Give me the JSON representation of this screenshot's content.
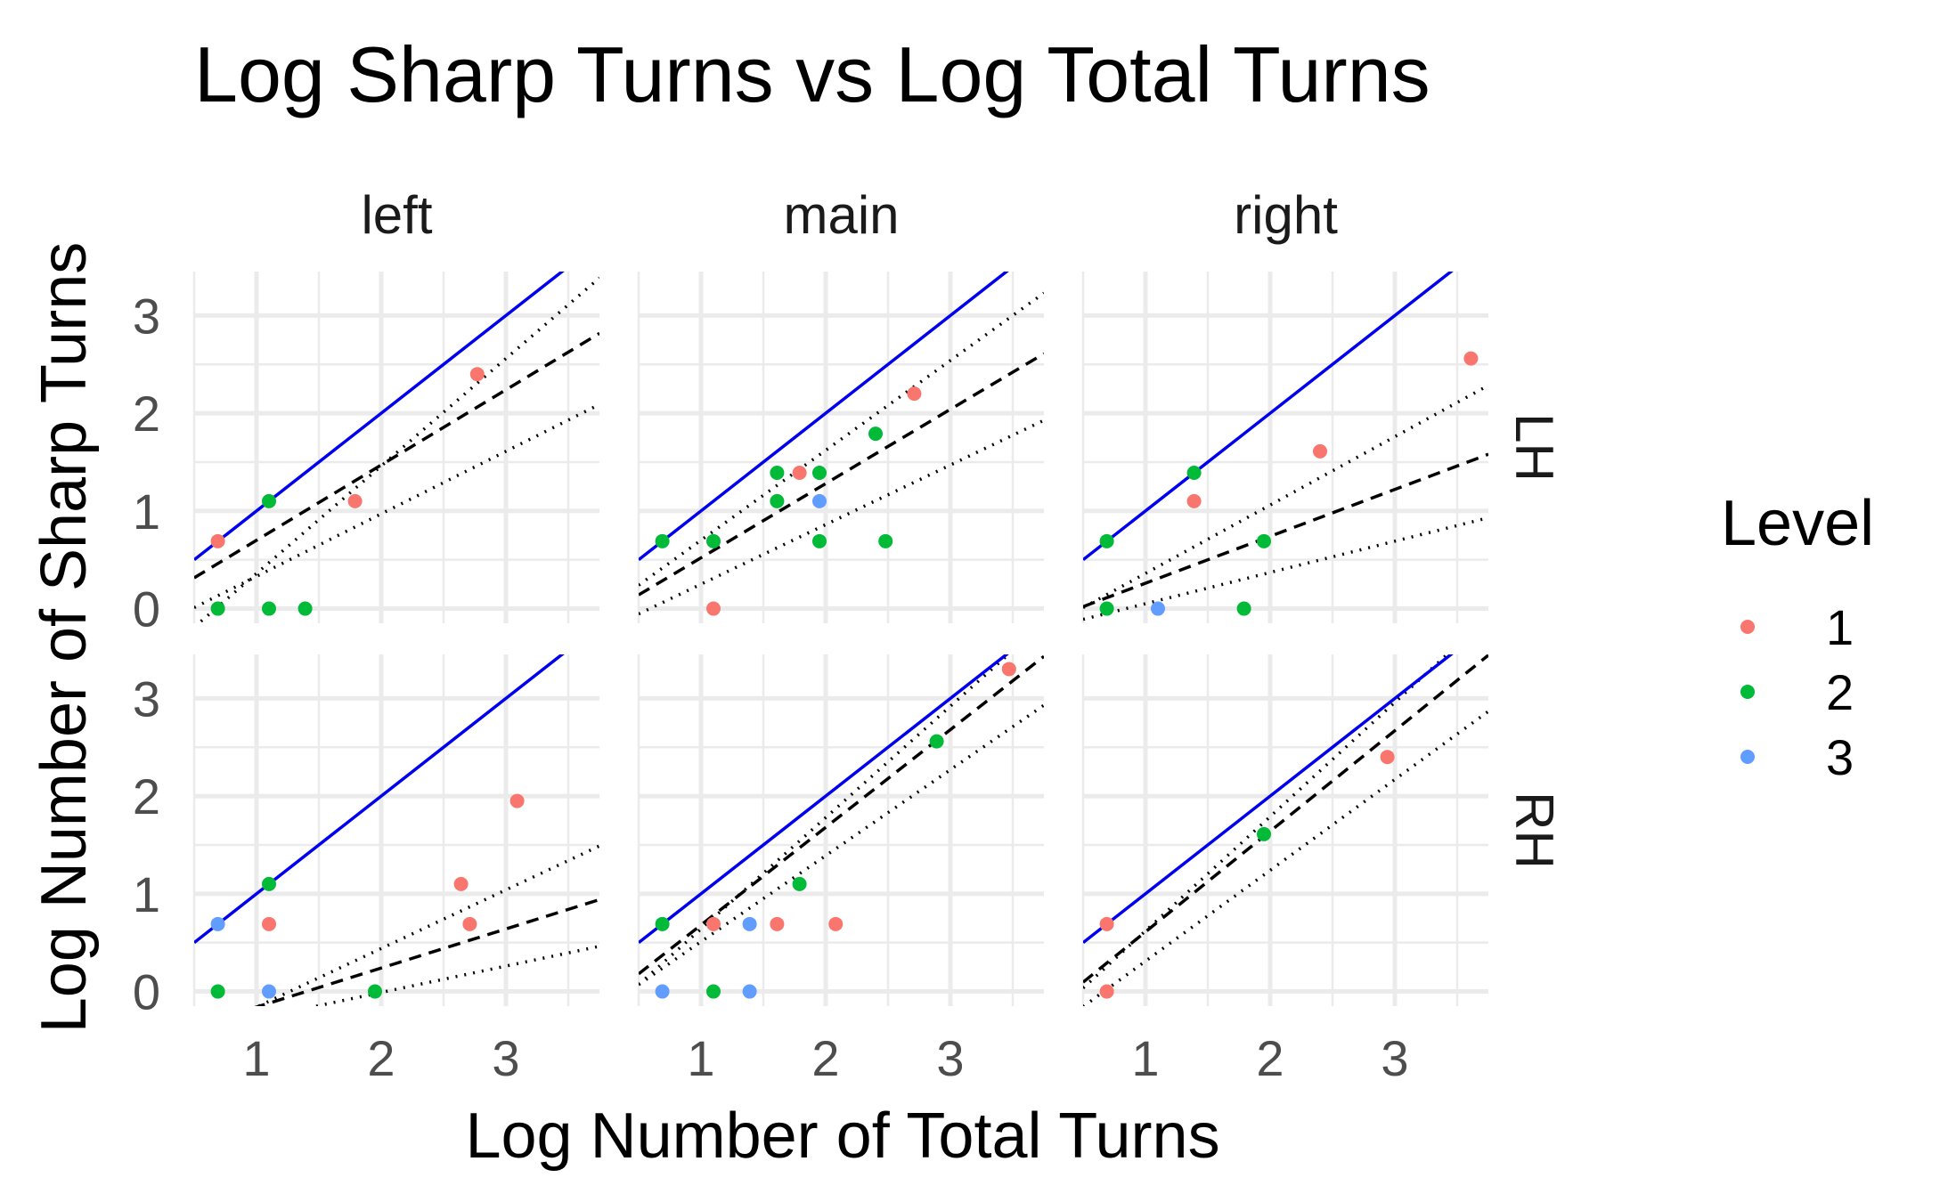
{
  "chart_data": {
    "type": "scatter",
    "title": "Log Sharp Turns vs Log Total Turns",
    "xlabel": "Log Number of Total Turns",
    "ylabel": "Log Number of Sharp Turns",
    "xlim": [
      0.5,
      3.75
    ],
    "ylim": [
      -0.15,
      3.45
    ],
    "x_ticks": [
      1,
      2,
      3
    ],
    "y_ticks": [
      0,
      1,
      2,
      3
    ],
    "grid": true,
    "facet_cols": [
      "left",
      "main",
      "right"
    ],
    "facet_rows": [
      "LH",
      "RH"
    ],
    "legend": {
      "title": "Level",
      "position": "right",
      "entries": [
        {
          "label": "1",
          "color": "#F8766D"
        },
        {
          "label": "2",
          "color": "#00BA38"
        },
        {
          "label": "3",
          "color": "#619CFF"
        }
      ]
    },
    "line_styles": {
      "reference": {
        "color": "#0000ee",
        "dash": "solid",
        "description": "y = x"
      },
      "fit": {
        "color": "#000000",
        "dash": "dashed"
      },
      "bounds": {
        "color": "#000000",
        "dash": "dotted"
      }
    },
    "panels": [
      {
        "col": "left",
        "row": "LH",
        "points": [
          {
            "x": 0.69,
            "y": 0.69,
            "level": 1
          },
          {
            "x": 1.79,
            "y": 1.1,
            "level": 1
          },
          {
            "x": 2.77,
            "y": 2.4,
            "level": 1
          },
          {
            "x": 0.69,
            "y": 0.0,
            "level": 2
          },
          {
            "x": 1.1,
            "y": 1.1,
            "level": 2
          },
          {
            "x": 1.1,
            "y": 0.0,
            "level": 2
          },
          {
            "x": 1.39,
            "y": 0.0,
            "level": 2
          }
        ],
        "fit": {
          "slope": 0.77,
          "intercept": -0.07
        },
        "bounds": [
          {
            "slope": 1.1,
            "intercept": -0.74
          },
          {
            "slope": 0.64,
            "intercept": -0.31
          }
        ]
      },
      {
        "col": "main",
        "row": "LH",
        "points": [
          {
            "x": 1.1,
            "y": 0.0,
            "level": 1
          },
          {
            "x": 1.79,
            "y": 1.39,
            "level": 1
          },
          {
            "x": 2.71,
            "y": 2.2,
            "level": 1
          },
          {
            "x": 0.69,
            "y": 0.69,
            "level": 2
          },
          {
            "x": 1.1,
            "y": 0.69,
            "level": 2
          },
          {
            "x": 1.61,
            "y": 1.39,
            "level": 2
          },
          {
            "x": 1.61,
            "y": 1.1,
            "level": 2
          },
          {
            "x": 1.95,
            "y": 1.39,
            "level": 2
          },
          {
            "x": 1.95,
            "y": 0.69,
            "level": 2
          },
          {
            "x": 2.4,
            "y": 1.79,
            "level": 2
          },
          {
            "x": 2.48,
            "y": 0.69,
            "level": 2
          },
          {
            "x": 1.95,
            "y": 1.1,
            "level": 3
          }
        ],
        "fit": {
          "slope": 0.76,
          "intercept": -0.24
        },
        "bounds": [
          {
            "slope": 0.92,
            "intercept": -0.22
          },
          {
            "slope": 0.61,
            "intercept": -0.36
          }
        ]
      },
      {
        "col": "right",
        "row": "LH",
        "points": [
          {
            "x": 1.39,
            "y": 1.1,
            "level": 1
          },
          {
            "x": 2.4,
            "y": 1.61,
            "level": 1
          },
          {
            "x": 3.61,
            "y": 2.56,
            "level": 1
          },
          {
            "x": 0.69,
            "y": 0.69,
            "level": 2
          },
          {
            "x": 0.69,
            "y": 0.0,
            "level": 2
          },
          {
            "x": 1.39,
            "y": 1.39,
            "level": 2
          },
          {
            "x": 1.95,
            "y": 0.69,
            "level": 2
          },
          {
            "x": 1.79,
            "y": 0.0,
            "level": 2
          },
          {
            "x": 1.1,
            "y": 0.0,
            "level": 3
          }
        ],
        "fit": {
          "slope": 0.48,
          "intercept": -0.22
        },
        "bounds": [
          {
            "slope": 0.7,
            "intercept": -0.34
          },
          {
            "slope": 0.32,
            "intercept": -0.27
          }
        ]
      },
      {
        "col": "left",
        "row": "RH",
        "points": [
          {
            "x": 1.1,
            "y": 0.69,
            "level": 1
          },
          {
            "x": 2.64,
            "y": 1.1,
            "level": 1
          },
          {
            "x": 2.71,
            "y": 0.69,
            "level": 1
          },
          {
            "x": 3.09,
            "y": 1.95,
            "level": 1
          },
          {
            "x": 0.69,
            "y": 0.0,
            "level": 2
          },
          {
            "x": 1.1,
            "y": 1.1,
            "level": 2
          },
          {
            "x": 1.95,
            "y": 0.0,
            "level": 2
          },
          {
            "x": 0.69,
            "y": 0.69,
            "level": 3
          },
          {
            "x": 1.1,
            "y": 0.0,
            "level": 3
          }
        ],
        "fit": {
          "slope": 0.4,
          "intercept": -0.56
        },
        "bounds": [
          {
            "slope": 0.6,
            "intercept": -0.76
          },
          {
            "slope": 0.27,
            "intercept": -0.55
          }
        ]
      },
      {
        "col": "main",
        "row": "RH",
        "points": [
          {
            "x": 1.1,
            "y": 0.69,
            "level": 1
          },
          {
            "x": 1.61,
            "y": 0.69,
            "level": 1
          },
          {
            "x": 2.08,
            "y": 0.69,
            "level": 1
          },
          {
            "x": 3.47,
            "y": 3.3,
            "level": 1
          },
          {
            "x": 0.69,
            "y": 0.69,
            "level": 2
          },
          {
            "x": 1.1,
            "y": 0.0,
            "level": 2
          },
          {
            "x": 1.79,
            "y": 1.1,
            "level": 2
          },
          {
            "x": 2.89,
            "y": 2.56,
            "level": 2
          },
          {
            "x": 1.39,
            "y": 0.69,
            "level": 3
          },
          {
            "x": 1.39,
            "y": 0.0,
            "level": 3
          },
          {
            "x": 0.69,
            "y": 0.0,
            "level": 3
          }
        ],
        "fit": {
          "slope": 1.0,
          "intercept": -0.32
        },
        "bounds": [
          {
            "slope": 1.14,
            "intercept": -0.5
          },
          {
            "slope": 0.88,
            "intercept": -0.37
          }
        ]
      },
      {
        "col": "right",
        "row": "RH",
        "points": [
          {
            "x": 0.69,
            "y": 0.69,
            "level": 1
          },
          {
            "x": 0.69,
            "y": 0.0,
            "level": 1
          },
          {
            "x": 2.94,
            "y": 2.4,
            "level": 1
          },
          {
            "x": 1.95,
            "y": 1.61,
            "level": 2
          }
        ],
        "fit": {
          "slope": 1.03,
          "intercept": -0.42
        },
        "bounds": [
          {
            "slope": 1.17,
            "intercept": -0.55
          },
          {
            "slope": 0.93,
            "intercept": -0.62
          }
        ]
      }
    ]
  }
}
